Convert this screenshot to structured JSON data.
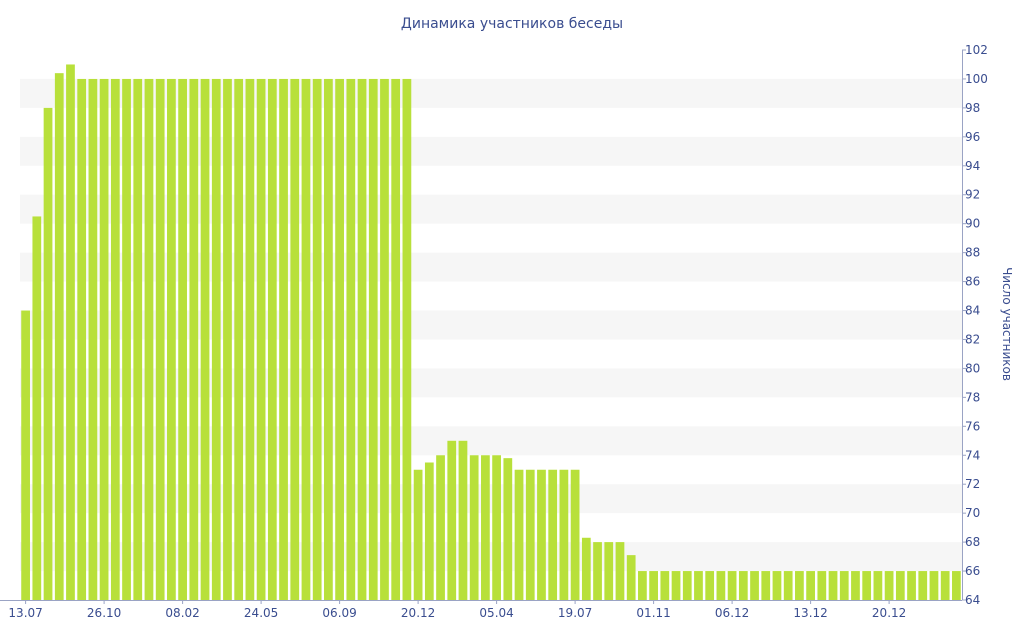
{
  "chart_data": {
    "type": "bar",
    "title": "Динамика участников беседы",
    "ylabel": "Число участников",
    "xlabel": "",
    "ylim": [
      64,
      102
    ],
    "y_ticks": [
      64,
      66,
      68,
      70,
      72,
      74,
      76,
      78,
      80,
      82,
      84,
      86,
      88,
      90,
      92,
      94,
      96,
      98,
      100,
      102
    ],
    "y_axis_side": "right",
    "grid": "alternating horizontal bands",
    "legend": "none",
    "x_tick_labels": [
      "13.07",
      "26.10",
      "08.02",
      "24.05",
      "06.09",
      "20.12",
      "05.04",
      "19.07",
      "01.11",
      "06.12",
      "13.12",
      "20.12"
    ],
    "x_tick_bar_index": [
      0,
      7,
      14,
      21,
      28,
      35,
      42,
      49,
      56,
      63,
      70,
      77
    ],
    "values": [
      84,
      90.5,
      98,
      100.4,
      101,
      100,
      100,
      100,
      100,
      100,
      100,
      100,
      100,
      100,
      100,
      100,
      100,
      100,
      100,
      100,
      100,
      100,
      100,
      100,
      100,
      100,
      100,
      100,
      100,
      100,
      100,
      100,
      100,
      100,
      100,
      73,
      73.5,
      74,
      75,
      75,
      74,
      74,
      74,
      73.8,
      73,
      73,
      73,
      73,
      73,
      73,
      68.3,
      68,
      68,
      68,
      67.1,
      66,
      66,
      66,
      66,
      66,
      66,
      66,
      66,
      66,
      66,
      66,
      66,
      66,
      66,
      66,
      66,
      66,
      66,
      66,
      66,
      66,
      66,
      66,
      66,
      66,
      66,
      66,
      66,
      66
    ],
    "colors": {
      "bar": "#b8e03a",
      "band": "#f6f6f6",
      "text": "#3a4d8f",
      "axis": "#3a4d8f"
    }
  }
}
